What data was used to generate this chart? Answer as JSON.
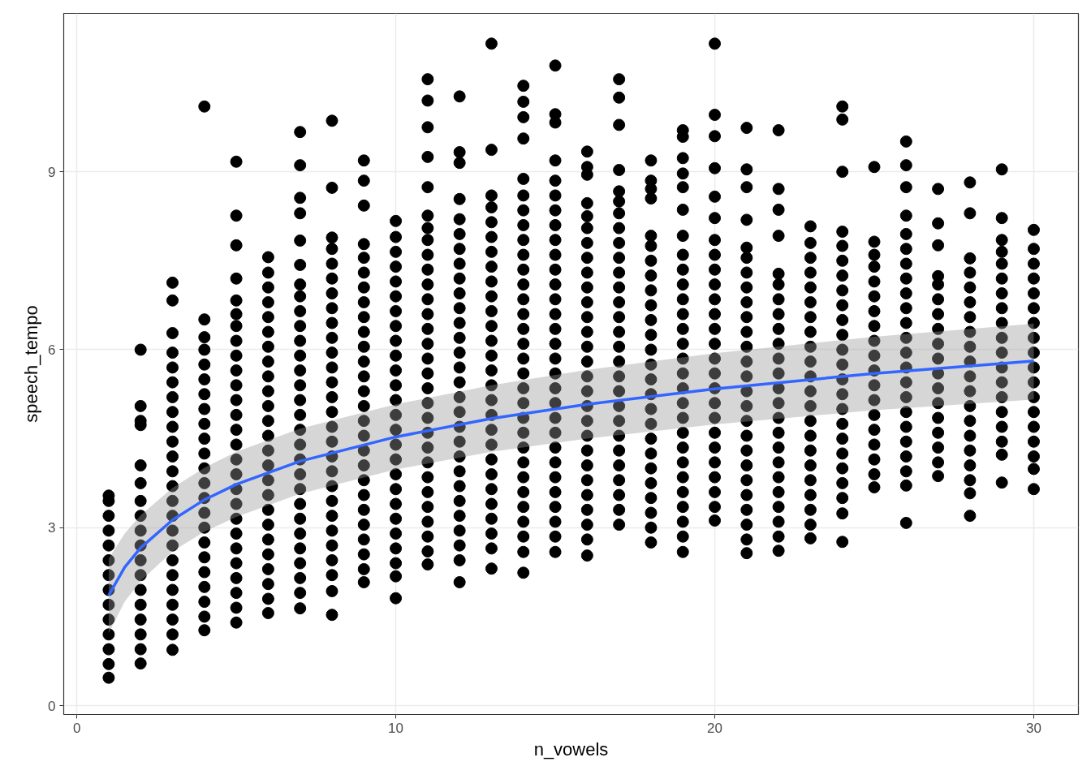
{
  "chart_data": {
    "type": "scatter",
    "xlabel": "n_vowels",
    "ylabel": "speech_tempo",
    "xlim": [
      -0.41,
      31.4
    ],
    "ylim": [
      -0.15,
      11.67
    ],
    "xticks": [
      0,
      10,
      20,
      30
    ],
    "yticks": [
      0,
      3,
      6,
      9
    ],
    "grid": true,
    "marker": "circle",
    "series": [
      {
        "color": "#000000",
        "x": [
          1,
          1,
          1,
          1,
          1,
          1,
          1,
          1,
          1,
          1,
          1,
          1,
          1,
          1
        ],
        "values": [
          0.47,
          0.7,
          0.95,
          1.2,
          1.45,
          1.7,
          1.95,
          2.2,
          2.45,
          2.7,
          2.95,
          3.2,
          3.45,
          3.54
        ]
      },
      {
        "color": "#000000",
        "x": [
          2,
          2,
          2,
          2,
          2,
          2,
          2,
          2,
          2,
          2,
          2,
          2,
          2,
          2,
          2,
          2,
          2,
          2
        ],
        "values": [
          0.71,
          0.95,
          1.2,
          1.45,
          1.7,
          1.95,
          2.2,
          2.45,
          2.7,
          2.95,
          3.2,
          3.45,
          3.75,
          4.05,
          4.73,
          4.8,
          5.05,
          6.0
        ]
      },
      {
        "color": "#000000",
        "x": [
          3,
          3,
          3,
          3,
          3,
          3,
          3,
          3,
          3,
          3,
          3,
          3,
          3,
          3,
          3,
          3,
          3,
          3,
          3,
          3,
          3,
          3,
          3,
          3
        ],
        "values": [
          0.94,
          1.2,
          1.45,
          1.7,
          1.95,
          2.2,
          2.45,
          2.7,
          2.95,
          3.2,
          3.45,
          3.7,
          3.95,
          4.2,
          4.45,
          4.7,
          4.95,
          5.2,
          5.45,
          5.7,
          5.95,
          6.28,
          6.83,
          7.13
        ]
      },
      {
        "color": "#000000",
        "x": [
          4,
          4,
          4,
          4,
          4,
          4,
          4,
          4,
          4,
          4,
          4,
          4,
          4,
          4,
          4,
          4,
          4,
          4,
          4,
          4,
          4,
          4,
          4
        ],
        "values": [
          1.27,
          1.5,
          1.75,
          2.0,
          2.25,
          2.5,
          2.75,
          3.0,
          3.25,
          3.5,
          3.75,
          4.0,
          4.25,
          4.5,
          4.75,
          5.0,
          5.25,
          5.5,
          5.75,
          6.0,
          6.21,
          6.51,
          10.1
        ]
      },
      {
        "color": "#000000",
        "x": [
          5,
          5,
          5,
          5,
          5,
          5,
          5,
          5,
          5,
          5,
          5,
          5,
          5,
          5,
          5,
          5,
          5,
          5,
          5,
          5,
          5,
          5,
          5,
          5,
          5,
          5,
          5
        ],
        "values": [
          1.4,
          1.65,
          1.9,
          2.15,
          2.4,
          2.65,
          2.9,
          3.15,
          3.4,
          3.65,
          3.9,
          4.15,
          4.4,
          4.65,
          4.9,
          5.15,
          5.4,
          5.65,
          5.9,
          6.15,
          6.4,
          6.6,
          6.83,
          7.2,
          7.76,
          8.26,
          9.17
        ]
      },
      {
        "color": "#000000",
        "x": [
          6,
          6,
          6,
          6,
          6,
          6,
          6,
          6,
          6,
          6,
          6,
          6,
          6,
          6,
          6,
          6,
          6,
          6,
          6,
          6,
          6,
          6,
          6,
          6,
          6
        ],
        "values": [
          1.56,
          1.8,
          2.05,
          2.3,
          2.55,
          2.8,
          3.05,
          3.3,
          3.55,
          3.8,
          4.05,
          4.3,
          4.55,
          4.8,
          5.05,
          5.3,
          5.55,
          5.8,
          6.05,
          6.3,
          6.55,
          6.8,
          7.05,
          7.3,
          7.56
        ]
      },
      {
        "color": "#000000",
        "x": [
          7,
          7,
          7,
          7,
          7,
          7,
          7,
          7,
          7,
          7,
          7,
          7,
          7,
          7,
          7,
          7,
          7,
          7,
          7,
          7,
          7,
          7,
          7,
          7,
          7,
          7,
          7,
          7,
          7
        ],
        "values": [
          1.64,
          1.9,
          2.15,
          2.4,
          2.65,
          2.9,
          3.15,
          3.4,
          3.65,
          3.9,
          4.15,
          4.4,
          4.65,
          4.9,
          5.15,
          5.4,
          5.65,
          5.9,
          6.15,
          6.4,
          6.65,
          6.9,
          7.1,
          7.43,
          7.84,
          8.3,
          8.56,
          9.11,
          9.67
        ]
      },
      {
        "color": "#000000",
        "x": [
          8,
          8,
          8,
          8,
          8,
          8,
          8,
          8,
          8,
          8,
          8,
          8,
          8,
          8,
          8,
          8,
          8,
          8,
          8,
          8,
          8,
          8,
          8,
          8,
          8,
          8,
          8,
          8
        ],
        "values": [
          1.53,
          1.93,
          2.2,
          2.45,
          2.7,
          2.95,
          3.2,
          3.45,
          3.7,
          3.95,
          4.2,
          4.45,
          4.7,
          4.95,
          5.2,
          5.45,
          5.7,
          5.95,
          6.2,
          6.45,
          6.7,
          6.95,
          7.2,
          7.45,
          7.7,
          7.89,
          8.73,
          9.86
        ]
      },
      {
        "color": "#000000",
        "x": [
          9,
          9,
          9,
          9,
          9,
          9,
          9,
          9,
          9,
          9,
          9,
          9,
          9,
          9,
          9,
          9,
          9,
          9,
          9,
          9,
          9,
          9,
          9,
          9,
          9,
          9,
          9
        ],
        "values": [
          2.08,
          2.3,
          2.55,
          2.8,
          3.05,
          3.3,
          3.55,
          3.8,
          4.05,
          4.3,
          4.55,
          4.8,
          5.05,
          5.3,
          5.55,
          5.8,
          6.05,
          6.3,
          6.55,
          6.8,
          7.05,
          7.3,
          7.55,
          7.78,
          8.43,
          8.85,
          9.19
        ]
      },
      {
        "color": "#000000",
        "x": [
          10,
          10,
          10,
          10,
          10,
          10,
          10,
          10,
          10,
          10,
          10,
          10,
          10,
          10,
          10,
          10,
          10,
          10,
          10,
          10,
          10,
          10,
          10,
          10,
          10,
          10
        ],
        "values": [
          1.81,
          2.18,
          2.4,
          2.65,
          2.9,
          3.15,
          3.4,
          3.65,
          3.9,
          4.15,
          4.4,
          4.65,
          4.9,
          5.15,
          5.4,
          5.65,
          5.9,
          6.15,
          6.4,
          6.65,
          6.9,
          7.15,
          7.4,
          7.65,
          7.9,
          8.17
        ]
      },
      {
        "color": "#000000",
        "x": [
          11,
          11,
          11,
          11,
          11,
          11,
          11,
          11,
          11,
          11,
          11,
          11,
          11,
          11,
          11,
          11,
          11,
          11,
          11,
          11,
          11,
          11,
          11,
          11,
          11,
          11,
          11,
          11,
          11,
          11
        ],
        "values": [
          2.38,
          2.6,
          2.85,
          3.1,
          3.35,
          3.6,
          3.85,
          4.1,
          4.35,
          4.6,
          4.85,
          5.1,
          5.35,
          5.6,
          5.85,
          6.1,
          6.35,
          6.6,
          6.85,
          7.1,
          7.35,
          7.6,
          7.85,
          8.05,
          8.26,
          8.74,
          9.25,
          9.75,
          10.2,
          10.56
        ]
      },
      {
        "color": "#000000",
        "x": [
          12,
          12,
          12,
          12,
          12,
          12,
          12,
          12,
          12,
          12,
          12,
          12,
          12,
          12,
          12,
          12,
          12,
          12,
          12,
          12,
          12,
          12,
          12,
          12,
          12,
          12,
          12,
          12,
          12
        ],
        "values": [
          2.08,
          2.45,
          2.7,
          2.95,
          3.2,
          3.45,
          3.7,
          3.95,
          4.2,
          4.45,
          4.7,
          4.95,
          5.2,
          5.45,
          5.7,
          5.95,
          6.2,
          6.45,
          6.7,
          6.95,
          7.2,
          7.45,
          7.7,
          7.95,
          8.2,
          8.54,
          9.15,
          9.33,
          10.27
        ]
      },
      {
        "color": "#000000",
        "x": [
          13,
          13,
          13,
          13,
          13,
          13,
          13,
          13,
          13,
          13,
          13,
          13,
          13,
          13,
          13,
          13,
          13,
          13,
          13,
          13,
          13,
          13,
          13,
          13,
          13,
          13,
          13,
          13
        ],
        "values": [
          2.31,
          2.65,
          2.9,
          3.15,
          3.4,
          3.65,
          3.9,
          4.15,
          4.4,
          4.65,
          4.9,
          5.15,
          5.4,
          5.65,
          5.9,
          6.15,
          6.4,
          6.65,
          6.9,
          7.15,
          7.4,
          7.65,
          7.9,
          8.15,
          8.4,
          8.6,
          9.37,
          11.16
        ]
      },
      {
        "color": "#000000",
        "x": [
          14,
          14,
          14,
          14,
          14,
          14,
          14,
          14,
          14,
          14,
          14,
          14,
          14,
          14,
          14,
          14,
          14,
          14,
          14,
          14,
          14,
          14,
          14,
          14,
          14,
          14,
          14,
          14,
          14,
          14,
          14
        ],
        "values": [
          2.24,
          2.59,
          2.85,
          3.1,
          3.35,
          3.6,
          3.85,
          4.1,
          4.35,
          4.6,
          4.85,
          5.1,
          5.35,
          5.6,
          5.85,
          6.1,
          6.35,
          6.6,
          6.85,
          7.1,
          7.35,
          7.6,
          7.85,
          8.1,
          8.35,
          8.6,
          8.88,
          9.56,
          9.92,
          10.18,
          10.45
        ]
      },
      {
        "color": "#000000",
        "x": [
          15,
          15,
          15,
          15,
          15,
          15,
          15,
          15,
          15,
          15,
          15,
          15,
          15,
          15,
          15,
          15,
          15,
          15,
          15,
          15,
          15,
          15,
          15,
          15,
          15,
          15,
          15,
          15,
          15,
          15
        ],
        "values": [
          2.59,
          2.85,
          3.1,
          3.35,
          3.6,
          3.85,
          4.1,
          4.35,
          4.6,
          4.85,
          5.1,
          5.35,
          5.6,
          5.85,
          6.1,
          6.35,
          6.6,
          6.85,
          7.1,
          7.35,
          7.6,
          7.85,
          8.1,
          8.35,
          8.6,
          8.85,
          9.19,
          9.83,
          9.97,
          10.79
        ]
      },
      {
        "color": "#000000",
        "x": [
          16,
          16,
          16,
          16,
          16,
          16,
          16,
          16,
          16,
          16,
          16,
          16,
          16,
          16,
          16,
          16,
          16,
          16,
          16,
          16,
          16,
          16,
          16,
          16,
          16,
          16,
          16,
          16
        ],
        "values": [
          2.53,
          2.8,
          3.05,
          3.3,
          3.55,
          3.8,
          4.05,
          4.3,
          4.55,
          4.8,
          5.05,
          5.3,
          5.55,
          5.8,
          6.05,
          6.3,
          6.55,
          6.8,
          7.05,
          7.3,
          7.55,
          7.8,
          8.05,
          8.25,
          8.47,
          8.95,
          9.08,
          9.34
        ]
      },
      {
        "color": "#000000",
        "x": [
          17,
          17,
          17,
          17,
          17,
          17,
          17,
          17,
          17,
          17,
          17,
          17,
          17,
          17,
          17,
          17,
          17,
          17,
          17,
          17,
          17,
          17,
          17,
          17,
          17,
          17,
          17,
          17
        ],
        "values": [
          3.05,
          3.3,
          3.55,
          3.8,
          4.05,
          4.3,
          4.55,
          4.8,
          5.05,
          5.3,
          5.55,
          5.8,
          6.05,
          6.3,
          6.55,
          6.8,
          7.05,
          7.3,
          7.55,
          7.8,
          8.05,
          8.3,
          8.5,
          8.67,
          9.03,
          9.79,
          10.25,
          10.56
        ]
      },
      {
        "color": "#000000",
        "x": [
          18,
          18,
          18,
          18,
          18,
          18,
          18,
          18,
          18,
          18,
          18,
          18,
          18,
          18,
          18,
          18,
          18,
          18,
          18,
          18,
          18,
          18,
          18,
          18,
          18,
          18
        ],
        "values": [
          2.75,
          3.0,
          3.25,
          3.5,
          3.75,
          4.0,
          4.25,
          4.5,
          4.75,
          5.0,
          5.25,
          5.5,
          5.75,
          6.0,
          6.25,
          6.5,
          6.75,
          7.0,
          7.25,
          7.5,
          7.75,
          7.92,
          8.55,
          8.71,
          8.85,
          9.19
        ]
      },
      {
        "color": "#000000",
        "x": [
          19,
          19,
          19,
          19,
          19,
          19,
          19,
          19,
          19,
          19,
          19,
          19,
          19,
          19,
          19,
          19,
          19,
          19,
          19,
          19,
          19,
          19,
          19,
          19,
          19,
          19,
          19,
          19
        ],
        "values": [
          2.59,
          2.85,
          3.1,
          3.35,
          3.6,
          3.85,
          4.1,
          4.35,
          4.6,
          4.85,
          5.1,
          5.35,
          5.6,
          5.85,
          6.1,
          6.35,
          6.6,
          6.85,
          7.1,
          7.35,
          7.6,
          7.92,
          8.36,
          8.74,
          8.97,
          9.23,
          9.59,
          9.7
        ]
      },
      {
        "color": "#000000",
        "x": [
          20,
          20,
          20,
          20,
          20,
          20,
          20,
          20,
          20,
          20,
          20,
          20,
          20,
          20,
          20,
          20,
          20,
          20,
          20,
          20,
          20,
          20,
          20,
          20,
          20,
          20
        ],
        "values": [
          3.12,
          3.35,
          3.6,
          3.85,
          4.1,
          4.35,
          4.6,
          4.85,
          5.1,
          5.35,
          5.6,
          5.85,
          6.1,
          6.35,
          6.6,
          6.85,
          7.1,
          7.35,
          7.6,
          7.85,
          8.22,
          8.58,
          9.06,
          9.6,
          9.96,
          11.16
        ]
      },
      {
        "color": "#000000",
        "x": [
          21,
          21,
          21,
          21,
          21,
          21,
          21,
          21,
          21,
          21,
          21,
          21,
          21,
          21,
          21,
          21,
          21,
          21,
          21,
          21,
          21,
          21,
          21,
          21,
          21,
          21
        ],
        "values": [
          2.57,
          2.8,
          3.05,
          3.3,
          3.55,
          3.8,
          4.05,
          4.3,
          4.55,
          4.8,
          5.05,
          5.3,
          5.55,
          5.8,
          6.05,
          6.3,
          6.55,
          6.8,
          7.05,
          7.3,
          7.55,
          7.72,
          8.19,
          8.74,
          9.04,
          9.74
        ]
      },
      {
        "color": "#000000",
        "x": [
          22,
          22,
          22,
          22,
          22,
          22,
          22,
          22,
          22,
          22,
          22,
          22,
          22,
          22,
          22,
          22,
          22,
          22,
          22,
          22,
          22,
          22,
          22,
          22
        ],
        "values": [
          2.61,
          2.85,
          3.1,
          3.35,
          3.6,
          3.85,
          4.1,
          4.35,
          4.6,
          4.85,
          5.1,
          5.35,
          5.6,
          5.85,
          6.1,
          6.35,
          6.6,
          6.85,
          7.1,
          7.28,
          7.92,
          8.36,
          8.71,
          9.7
        ]
      },
      {
        "color": "#000000",
        "x": [
          23,
          23,
          23,
          23,
          23,
          23,
          23,
          23,
          23,
          23,
          23,
          23,
          23,
          23,
          23,
          23,
          23,
          23,
          23,
          23,
          23,
          23
        ],
        "values": [
          2.82,
          3.05,
          3.3,
          3.55,
          3.8,
          4.05,
          4.3,
          4.55,
          4.8,
          5.05,
          5.3,
          5.55,
          5.8,
          6.05,
          6.3,
          6.55,
          6.8,
          7.05,
          7.3,
          7.55,
          7.8,
          8.08
        ]
      },
      {
        "color": "#000000",
        "x": [
          24,
          24,
          24,
          24,
          24,
          24,
          24,
          24,
          24,
          24,
          24,
          24,
          24,
          24,
          24,
          24,
          24,
          24,
          24,
          24,
          24,
          24,
          24,
          24
        ],
        "values": [
          2.76,
          3.24,
          3.5,
          3.75,
          4.0,
          4.25,
          4.5,
          4.75,
          5.0,
          5.25,
          5.5,
          5.75,
          6.0,
          6.25,
          6.5,
          6.75,
          7.0,
          7.25,
          7.5,
          7.75,
          7.99,
          9.0,
          9.88,
          10.1
        ]
      },
      {
        "color": "#000000",
        "x": [
          25,
          25,
          25,
          25,
          25,
          25,
          25,
          25,
          25,
          25,
          25,
          25,
          25,
          25,
          25,
          25,
          25,
          25,
          25
        ],
        "values": [
          3.68,
          3.9,
          4.15,
          4.4,
          4.65,
          4.9,
          5.15,
          5.4,
          5.65,
          5.9,
          6.15,
          6.4,
          6.65,
          6.9,
          7.15,
          7.4,
          7.6,
          7.82,
          9.08
        ]
      },
      {
        "color": "#000000",
        "x": [
          26,
          26,
          26,
          26,
          26,
          26,
          26,
          26,
          26,
          26,
          26,
          26,
          26,
          26,
          26,
          26,
          26,
          26,
          26,
          26,
          26,
          26,
          26
        ],
        "values": [
          3.08,
          3.71,
          3.95,
          4.2,
          4.45,
          4.7,
          4.95,
          5.2,
          5.45,
          5.7,
          5.95,
          6.2,
          6.45,
          6.7,
          6.95,
          7.2,
          7.45,
          7.7,
          7.95,
          8.26,
          8.74,
          9.11,
          9.51
        ]
      },
      {
        "color": "#000000",
        "x": [
          27,
          27,
          27,
          27,
          27,
          27,
          27,
          27,
          27,
          27,
          27,
          27,
          27,
          27,
          27,
          27,
          27,
          27
        ],
        "values": [
          3.87,
          4.1,
          4.35,
          4.6,
          4.85,
          5.1,
          5.35,
          5.6,
          5.85,
          6.1,
          6.35,
          6.6,
          6.85,
          7.1,
          7.24,
          7.76,
          8.13,
          8.71
        ]
      },
      {
        "color": "#000000",
        "x": [
          28,
          28,
          28,
          28,
          28,
          28,
          28,
          28,
          28,
          28,
          28,
          28,
          28,
          28,
          28,
          28,
          28,
          28,
          28,
          28
        ],
        "values": [
          3.2,
          3.58,
          3.8,
          4.05,
          4.3,
          4.55,
          4.8,
          5.05,
          5.3,
          5.55,
          5.8,
          6.05,
          6.3,
          6.55,
          6.8,
          7.05,
          7.3,
          7.54,
          8.3,
          8.82
        ]
      },
      {
        "color": "#000000",
        "x": [
          29,
          29,
          29,
          29,
          29,
          29,
          29,
          29,
          29,
          29,
          29,
          29,
          29,
          29,
          29,
          29,
          29,
          29,
          29
        ],
        "values": [
          3.76,
          4.23,
          4.45,
          4.7,
          4.95,
          5.2,
          5.45,
          5.7,
          5.95,
          6.2,
          6.45,
          6.7,
          6.95,
          7.2,
          7.45,
          7.65,
          7.85,
          8.22,
          9.04
        ]
      },
      {
        "color": "#000000",
        "x": [
          30,
          30,
          30,
          30,
          30,
          30,
          30,
          30,
          30,
          30,
          30,
          30,
          30,
          30,
          30,
          30,
          30,
          30
        ],
        "values": [
          3.65,
          3.99,
          4.2,
          4.45,
          4.7,
          4.95,
          5.2,
          5.45,
          5.7,
          5.95,
          6.2,
          6.45,
          6.7,
          6.95,
          7.2,
          7.45,
          7.7,
          8.02
        ]
      },
      {
        "type": "line",
        "marker": "none",
        "color": "#3366ff",
        "x": [
          1,
          1.5,
          2,
          3,
          4,
          5,
          7,
          10,
          13,
          16,
          20,
          25,
          30
        ],
        "values": [
          1.86,
          2.33,
          2.66,
          3.13,
          3.47,
          3.73,
          4.12,
          4.53,
          4.84,
          5.08,
          5.34,
          5.6,
          5.81
        ],
        "lower": [
          1.22,
          1.75,
          2.1,
          2.6,
          2.93,
          3.18,
          3.57,
          3.98,
          4.28,
          4.5,
          4.74,
          4.98,
          5.16
        ],
        "upper": [
          2.48,
          2.9,
          3.21,
          3.67,
          4.01,
          4.28,
          4.67,
          5.08,
          5.4,
          5.66,
          5.94,
          6.22,
          6.44
        ]
      }
    ]
  }
}
